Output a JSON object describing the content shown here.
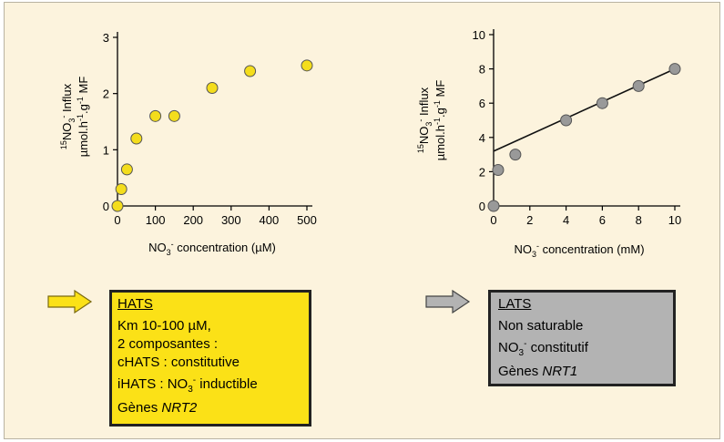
{
  "colors": {
    "background": "#fcf3dd",
    "hats_point": "#f4dd1c",
    "lats_point": "#999999",
    "hats_box": "#fbe117",
    "lats_box": "#b3b3b3",
    "fit_line": "#111111"
  },
  "chart_data": [
    {
      "type": "scatter",
      "title": "",
      "xlabel": "NO3- concentration (µM)",
      "ylabel_line1": "15NO3- Influx",
      "ylabel_line2": "µmol.h-1.g-1 MF",
      "xlim": [
        0,
        500
      ],
      "ylim": [
        0,
        3
      ],
      "xticks": [
        0,
        100,
        200,
        300,
        400,
        500
      ],
      "yticks": [
        0,
        1,
        2,
        3
      ],
      "grid": false,
      "series": [
        {
          "x": [
            0,
            10,
            25,
            50,
            100,
            150,
            250,
            350,
            500
          ],
          "y": [
            0,
            0.3,
            0.65,
            1.2,
            1.6,
            1.6,
            2.1,
            2.4,
            2.5
          ]
        }
      ]
    },
    {
      "type": "scatter",
      "title": "",
      "xlabel": "NO3- concentration (mM)",
      "ylabel_line1": "15NO3- Influx",
      "ylabel_line2": "µmol.h-1.g-1 MF",
      "xlim": [
        0,
        10
      ],
      "ylim": [
        0,
        10
      ],
      "xticks": [
        0,
        2,
        4,
        6,
        8,
        10
      ],
      "yticks": [
        0,
        2,
        4,
        6,
        8,
        10
      ],
      "grid": false,
      "series": [
        {
          "x": [
            0,
            0.25,
            1.2,
            4,
            6,
            8,
            10
          ],
          "y": [
            0,
            2.1,
            3.0,
            5.0,
            6.0,
            7.0,
            8.0
          ]
        }
      ],
      "fit_line": {
        "x": [
          0,
          10
        ],
        "y": [
          3.2,
          8.0
        ]
      }
    }
  ],
  "hats": {
    "title": "HATS",
    "line1": "Km 10-100 µM,",
    "line2": "2 composantes :",
    "line3": "cHATS : constitutive",
    "line4_a": "iHATS : NO",
    "line4_sub": "3",
    "line4_sup": "-",
    "line4_b": " inductible",
    "line5_a": "Gènes ",
    "line5_b": "NRT2"
  },
  "lats": {
    "title": "LATS",
    "line1": "Non saturable",
    "line2_a": "NO",
    "line2_sub": "3",
    "line2_sup": "-",
    "line2_b": " constitutif",
    "line3_a": "Gènes ",
    "line3_b": "NRT1"
  }
}
